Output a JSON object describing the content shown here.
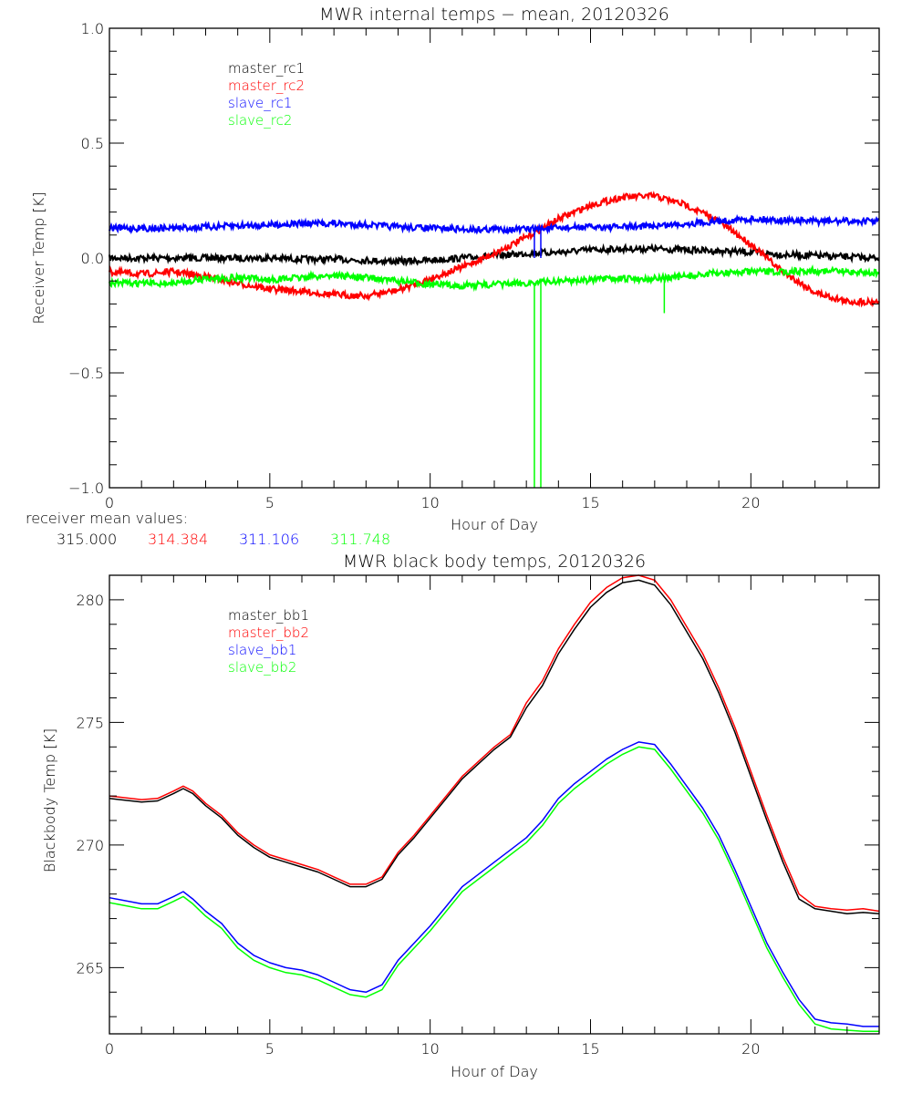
{
  "chart_data": [
    {
      "type": "line",
      "title": "MWR internal temps − mean, 20120326",
      "xlabel": "Hour of Day",
      "ylabel": "Receiver Temp [K]",
      "xlim": [
        0,
        24
      ],
      "ylim": [
        -1.0,
        1.0
      ],
      "xticks": [
        0,
        5,
        10,
        15,
        20
      ],
      "xtick_labels": [
        "0",
        "5",
        "10",
        "15",
        "20"
      ],
      "yticks": [
        -1.0,
        -0.5,
        0.0,
        0.5,
        1.0
      ],
      "ytick_labels": [
        "−1.0",
        "−0.5",
        "0.0",
        "0.5",
        "1.0"
      ],
      "grid": false,
      "legend_position": "top-left",
      "x": [
        0,
        1,
        2,
        3,
        4,
        5,
        6,
        7,
        8,
        9,
        10,
        11,
        12,
        13,
        14,
        15,
        16,
        17,
        18,
        19,
        20,
        21,
        22,
        23,
        24
      ],
      "series": [
        {
          "name": "master_rc1",
          "color": "#000000",
          "values": [
            0.0,
            0.0,
            0.0,
            0.0,
            0.0,
            0.0,
            -0.005,
            -0.005,
            -0.01,
            -0.015,
            -0.01,
            0.0,
            0.01,
            0.02,
            0.025,
            0.035,
            0.04,
            0.04,
            0.035,
            0.03,
            0.025,
            0.015,
            0.01,
            0.005,
            0.0
          ]
        },
        {
          "name": "master_rc2",
          "color": "#ff0000",
          "values": [
            -0.06,
            -0.07,
            -0.06,
            -0.08,
            -0.11,
            -0.135,
            -0.145,
            -0.16,
            -0.165,
            -0.14,
            -0.09,
            -0.04,
            0.02,
            0.09,
            0.17,
            0.23,
            0.265,
            0.27,
            0.23,
            0.16,
            0.06,
            -0.06,
            -0.15,
            -0.19,
            -0.19
          ]
        },
        {
          "name": "slave_rc1",
          "color": "#0000ff",
          "values": [
            0.13,
            0.13,
            0.13,
            0.135,
            0.14,
            0.145,
            0.15,
            0.15,
            0.145,
            0.135,
            0.13,
            0.125,
            0.125,
            0.125,
            0.13,
            0.135,
            0.135,
            0.14,
            0.15,
            0.16,
            0.17,
            0.165,
            0.16,
            0.16,
            0.16
          ]
        },
        {
          "name": "slave_rc2",
          "color": "#00ff00",
          "values": [
            -0.11,
            -0.11,
            -0.11,
            -0.09,
            -0.085,
            -0.095,
            -0.085,
            -0.075,
            -0.085,
            -0.1,
            -0.115,
            -0.12,
            -0.115,
            -0.11,
            -0.1,
            -0.095,
            -0.09,
            -0.09,
            -0.08,
            -0.065,
            -0.06,
            -0.06,
            -0.055,
            -0.06,
            -0.065
          ]
        }
      ],
      "spikes": [
        {
          "series": "slave_rc2",
          "x": 13.25,
          "to": -1.0
        },
        {
          "series": "slave_rc2",
          "x": 13.45,
          "to": -1.0
        },
        {
          "series": "slave_rc1",
          "x": 13.25,
          "to": 0.0
        },
        {
          "series": "slave_rc1",
          "x": 13.45,
          "to": 0.0
        },
        {
          "series": "slave_rc2",
          "x": 17.3,
          "to": -0.24
        }
      ],
      "footer": {
        "label": "receiver mean values:",
        "values": [
          {
            "text": "315.000",
            "color": "#000000"
          },
          {
            "text": "314.384",
            "color": "#ff0000"
          },
          {
            "text": "311.106",
            "color": "#0000ff"
          },
          {
            "text": "311.748",
            "color": "#00ff00"
          }
        ]
      }
    },
    {
      "type": "line",
      "title": "MWR black body temps, 20120326",
      "xlabel": "Hour of Day",
      "ylabel": "Blackbody Temp [K]",
      "xlim": [
        0,
        24
      ],
      "ylim": [
        262.3,
        281.0
      ],
      "xticks": [
        0,
        5,
        10,
        15,
        20
      ],
      "xtick_labels": [
        "0",
        "5",
        "10",
        "15",
        "20"
      ],
      "yticks": [
        265,
        270,
        275,
        280
      ],
      "ytick_labels": [
        "265",
        "270",
        "275",
        "280"
      ],
      "grid": false,
      "legend_position": "top-left",
      "x": [
        0,
        1,
        1.5,
        2,
        2.3,
        2.6,
        3,
        3.5,
        4,
        4.5,
        5,
        5.5,
        6,
        6.5,
        7,
        7.5,
        8,
        8.5,
        9,
        9.5,
        10,
        10.5,
        11,
        11.5,
        12,
        12.5,
        13,
        13.5,
        14,
        14.5,
        15,
        15.5,
        16,
        16.5,
        17,
        17.5,
        18,
        18.5,
        19,
        19.5,
        20,
        20.5,
        21,
        21.5,
        22,
        22.5,
        23,
        23.5,
        24
      ],
      "series": [
        {
          "name": "master_bb1",
          "color": "#000000",
          "values": [
            271.9,
            271.75,
            271.8,
            272.1,
            272.3,
            272.1,
            271.6,
            271.1,
            270.4,
            269.9,
            269.5,
            269.3,
            269.1,
            268.9,
            268.6,
            268.3,
            268.3,
            268.6,
            269.6,
            270.3,
            271.1,
            271.9,
            272.7,
            273.3,
            273.9,
            274.4,
            275.6,
            276.5,
            277.8,
            278.8,
            279.7,
            280.3,
            280.7,
            280.8,
            280.6,
            279.8,
            278.7,
            277.6,
            276.2,
            274.6,
            272.8,
            271.0,
            269.3,
            267.8,
            267.4,
            267.3,
            267.2,
            267.25,
            267.2
          ]
        },
        {
          "name": "master_bb2",
          "color": "#ff0000",
          "values": [
            272.0,
            271.85,
            271.9,
            272.2,
            272.4,
            272.2,
            271.7,
            271.2,
            270.5,
            270.0,
            269.6,
            269.4,
            269.2,
            269.0,
            268.7,
            268.4,
            268.4,
            268.7,
            269.7,
            270.4,
            271.2,
            272.0,
            272.8,
            273.4,
            274.0,
            274.5,
            275.8,
            276.7,
            278.0,
            279.0,
            279.9,
            280.5,
            280.9,
            281.0,
            280.8,
            280.0,
            278.9,
            277.8,
            276.4,
            274.8,
            273.0,
            271.2,
            269.5,
            268.0,
            267.5,
            267.4,
            267.35,
            267.4,
            267.3
          ]
        },
        {
          "name": "slave_bb1",
          "color": "#0000ff",
          "values": [
            267.85,
            267.6,
            267.6,
            267.9,
            268.1,
            267.8,
            267.3,
            266.8,
            266.0,
            265.5,
            265.2,
            265.0,
            264.9,
            264.7,
            264.4,
            264.1,
            264.0,
            264.3,
            265.3,
            266.0,
            266.7,
            267.5,
            268.3,
            268.8,
            269.3,
            269.8,
            270.3,
            271.0,
            271.9,
            272.5,
            273.0,
            273.5,
            273.9,
            274.2,
            274.1,
            273.3,
            272.4,
            271.5,
            270.4,
            269.0,
            267.5,
            266.0,
            264.8,
            263.7,
            262.9,
            262.75,
            262.7,
            262.6,
            262.6
          ]
        },
        {
          "name": "slave_bb2",
          "color": "#00ff00",
          "values": [
            267.65,
            267.4,
            267.4,
            267.7,
            267.9,
            267.6,
            267.1,
            266.6,
            265.8,
            265.3,
            265.0,
            264.8,
            264.7,
            264.5,
            264.2,
            263.9,
            263.8,
            264.1,
            265.1,
            265.8,
            266.5,
            267.3,
            268.1,
            268.6,
            269.1,
            269.6,
            270.1,
            270.8,
            271.7,
            272.3,
            272.8,
            273.3,
            273.7,
            274.0,
            273.9,
            273.1,
            272.2,
            271.3,
            270.2,
            268.8,
            267.3,
            265.8,
            264.6,
            263.5,
            262.7,
            262.5,
            262.45,
            262.4,
            262.4
          ]
        }
      ]
    }
  ]
}
